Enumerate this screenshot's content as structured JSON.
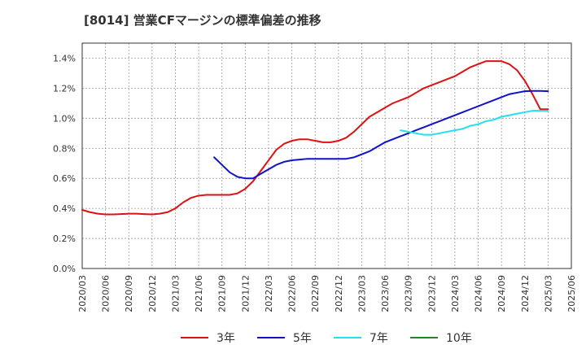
{
  "chart_data": {
    "type": "line",
    "title": "[8014]  営業CFマージンの標準偏差の推移",
    "xlabel": "",
    "ylabel": "",
    "ylim": [
      0,
      0.015
    ],
    "yticks": [
      0,
      0.002,
      0.004,
      0.006,
      0.008,
      0.01,
      0.012,
      0.014
    ],
    "ytick_labels": [
      "0.0%",
      "0.2%",
      "0.4%",
      "0.6%",
      "0.8%",
      "1.0%",
      "1.2%",
      "1.4%"
    ],
    "xticks": [
      "2020/03",
      "2020/06",
      "2020/09",
      "2020/12",
      "2021/03",
      "2021/06",
      "2021/09",
      "2021/12",
      "2022/03",
      "2022/06",
      "2022/09",
      "2022/12",
      "2023/03",
      "2023/06",
      "2023/09",
      "2023/12",
      "2024/03",
      "2024/06",
      "2024/09",
      "2024/12",
      "2025/03",
      "2025/06"
    ],
    "grid": true,
    "legend_position": "bottom",
    "series": [
      {
        "name": "3年",
        "color": "#dd1111",
        "x": [
          "2020/03",
          "2020/04",
          "2020/05",
          "2020/06",
          "2020/07",
          "2020/08",
          "2020/09",
          "2020/10",
          "2020/11",
          "2020/12",
          "2021/01",
          "2021/02",
          "2021/03",
          "2021/04",
          "2021/05",
          "2021/06",
          "2021/07",
          "2021/08",
          "2021/09",
          "2021/10",
          "2021/11",
          "2021/12",
          "2022/01",
          "2022/02",
          "2022/03",
          "2022/04",
          "2022/05",
          "2022/06",
          "2022/07",
          "2022/08",
          "2022/09",
          "2022/10",
          "2022/11",
          "2022/12",
          "2023/01",
          "2023/02",
          "2023/03",
          "2023/04",
          "2023/05",
          "2023/06",
          "2023/07",
          "2023/08",
          "2023/09",
          "2023/10",
          "2023/11",
          "2023/12",
          "2024/01",
          "2024/02",
          "2024/03",
          "2024/04",
          "2024/05",
          "2024/06",
          "2024/07",
          "2024/08",
          "2024/09",
          "2024/10",
          "2024/11",
          "2024/12",
          "2025/01",
          "2025/02",
          "2025/03"
        ],
        "values": [
          0.0039,
          0.00375,
          0.00365,
          0.0036,
          0.0036,
          0.00362,
          0.00365,
          0.00365,
          0.00362,
          0.0036,
          0.00365,
          0.00375,
          0.004,
          0.0044,
          0.0047,
          0.00485,
          0.0049,
          0.0049,
          0.0049,
          0.0049,
          0.005,
          0.0053,
          0.0058,
          0.0065,
          0.0072,
          0.0079,
          0.0083,
          0.0085,
          0.0086,
          0.0086,
          0.0085,
          0.0084,
          0.0084,
          0.0085,
          0.0087,
          0.0091,
          0.0096,
          0.0101,
          0.0104,
          0.0107,
          0.011,
          0.0112,
          0.0114,
          0.0117,
          0.012,
          0.0122,
          0.0124,
          0.0126,
          0.0128,
          0.0131,
          0.0134,
          0.0136,
          0.0138,
          0.0138,
          0.0138,
          0.0136,
          0.0132,
          0.0125,
          0.0116,
          0.0106,
          0.0106
        ]
      },
      {
        "name": "5年",
        "color": "#1111cc",
        "x": [
          "2021/08",
          "2021/09",
          "2021/10",
          "2021/11",
          "2021/12",
          "2022/01",
          "2022/02",
          "2022/03",
          "2022/04",
          "2022/05",
          "2022/06",
          "2022/07",
          "2022/08",
          "2022/09",
          "2022/10",
          "2022/11",
          "2022/12",
          "2023/01",
          "2023/02",
          "2023/03",
          "2023/04",
          "2023/05",
          "2023/06",
          "2023/07",
          "2023/08",
          "2023/09",
          "2023/10",
          "2023/11",
          "2023/12",
          "2024/01",
          "2024/02",
          "2024/03",
          "2024/04",
          "2024/05",
          "2024/06",
          "2024/07",
          "2024/08",
          "2024/09",
          "2024/10",
          "2024/11",
          "2024/12",
          "2025/01",
          "2025/02",
          "2025/03"
        ],
        "values": [
          0.0074,
          0.0069,
          0.0064,
          0.0061,
          0.006,
          0.006,
          0.0063,
          0.0066,
          0.0069,
          0.0071,
          0.0072,
          0.00725,
          0.0073,
          0.0073,
          0.0073,
          0.0073,
          0.0073,
          0.0073,
          0.0074,
          0.0076,
          0.0078,
          0.0081,
          0.0084,
          0.0086,
          0.0088,
          0.009,
          0.0092,
          0.0094,
          0.0096,
          0.0098,
          0.01,
          0.0102,
          0.0104,
          0.0106,
          0.0108,
          0.011,
          0.0112,
          0.0114,
          0.0116,
          0.0117,
          0.0118,
          0.01182,
          0.01182,
          0.0118
        ]
      },
      {
        "name": "7年",
        "color": "#22e0ee",
        "x": [
          "2023/08",
          "2023/09",
          "2023/10",
          "2023/11",
          "2023/12",
          "2024/01",
          "2024/02",
          "2024/03",
          "2024/04",
          "2024/05",
          "2024/06",
          "2024/07",
          "2024/08",
          "2024/09",
          "2024/10",
          "2024/11",
          "2024/12",
          "2025/01",
          "2025/02",
          "2025/03"
        ],
        "values": [
          0.0092,
          0.0091,
          0.009,
          0.0089,
          0.0089,
          0.009,
          0.0091,
          0.0092,
          0.0093,
          0.0095,
          0.0096,
          0.0098,
          0.0099,
          0.0101,
          0.0102,
          0.0103,
          0.0104,
          0.0105,
          0.0105,
          0.0105
        ]
      },
      {
        "name": "10年",
        "color": "#228822",
        "x": [],
        "values": []
      }
    ]
  }
}
